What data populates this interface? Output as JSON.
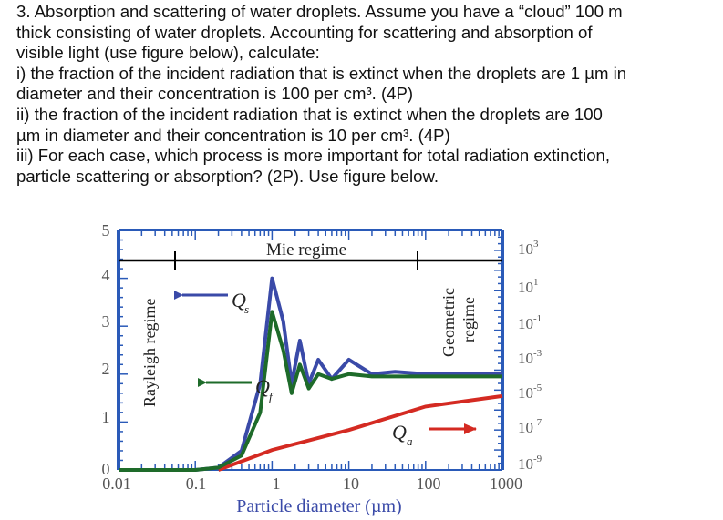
{
  "problem": {
    "lines": [
      "3. Absorption and scattering of water droplets. Assume you have a “cloud” 100 m",
      "thick consisting of water droplets. Accounting for scattering and absorption of",
      "visible light (use figure below), calculate:",
      "i) the fraction of the incident radiation that is extinct when the droplets are 1 µm in",
      "diameter and their concentration is 100 per cm³. (4P)",
      "ii) the fraction of the incident radiation that is extinct when the droplets are 100",
      "µm in diameter and their concentration is 10 per cm³. (4P)",
      "iii) For each case, which process is more important for total radiation extinction,",
      "particle scattering or absorption? (2P). Use figure below."
    ]
  },
  "figure": {
    "regime_labels": {
      "mie": "Mie regime",
      "rayleigh": "Rayleigh regime",
      "geometric_1": "Geometric",
      "geometric_2": "regime"
    },
    "curve_labels": {
      "qs": "Q",
      "qs_sub": "s",
      "qf": "Q",
      "qf_sub": "f",
      "qa": "Q",
      "qa_sub": "a"
    },
    "xlabel": "Particle diameter (µm)",
    "x_ticks": [
      "0.01",
      "0.1",
      "1",
      "10",
      "100",
      "1000"
    ],
    "left_ticks": [
      "0",
      "1",
      "2",
      "3",
      "4",
      "5"
    ],
    "right_ticks": [
      {
        "base": "10",
        "exp": "3"
      },
      {
        "base": "10",
        "exp": "1"
      },
      {
        "base": "10",
        "exp": "-1"
      },
      {
        "base": "10",
        "exp": "-3"
      },
      {
        "base": "10",
        "exp": "-5"
      },
      {
        "base": "10",
        "exp": "-7"
      },
      {
        "base": "10",
        "exp": "-9"
      }
    ],
    "colors": {
      "qs": "#3a4aa8",
      "qf": "#1e6b2a",
      "qa": "#d42a22",
      "axis": "#2a5ab8",
      "tick_text": "#555555"
    }
  },
  "chart_data": {
    "type": "line",
    "title": "",
    "xlabel": "Particle diameter (µm)",
    "ylabel": "",
    "x_scale": "log",
    "xlim": [
      0.01,
      1000
    ],
    "ylim_left": [
      0,
      5
    ],
    "ylim_right": [
      1e-09,
      1000
    ],
    "series": [
      {
        "name": "Q_s",
        "axis": "left",
        "x": [
          0.01,
          0.1,
          0.2,
          0.4,
          0.7,
          1.0,
          1.4,
          1.8,
          2.3,
          3,
          4,
          6,
          10,
          20,
          40,
          100,
          1000
        ],
        "y": [
          0,
          0,
          0.05,
          0.4,
          1.8,
          4.0,
          3.1,
          1.8,
          2.7,
          1.8,
          2.3,
          1.9,
          2.3,
          2.0,
          2.05,
          2.0,
          2.0
        ]
      },
      {
        "name": "Q_f",
        "axis": "left",
        "x": [
          0.01,
          0.1,
          0.2,
          0.4,
          0.7,
          1.0,
          1.4,
          1.8,
          2.3,
          3,
          4,
          6,
          10,
          20,
          40,
          100,
          1000
        ],
        "y": [
          0,
          0,
          0.05,
          0.3,
          1.2,
          3.3,
          2.5,
          1.6,
          2.2,
          1.7,
          2.0,
          1.9,
          2.0,
          1.95,
          1.95,
          1.95,
          1.95
        ]
      },
      {
        "name": "Q_a",
        "axis": "right",
        "x": [
          0.2,
          1,
          10,
          100,
          1000
        ],
        "y": [
          1e-09,
          1e-08,
          1e-07,
          1.5e-06,
          5e-06
        ]
      }
    ],
    "annotations": [
      "Mie regime",
      "Rayleigh regime",
      "Geometric regime"
    ]
  }
}
